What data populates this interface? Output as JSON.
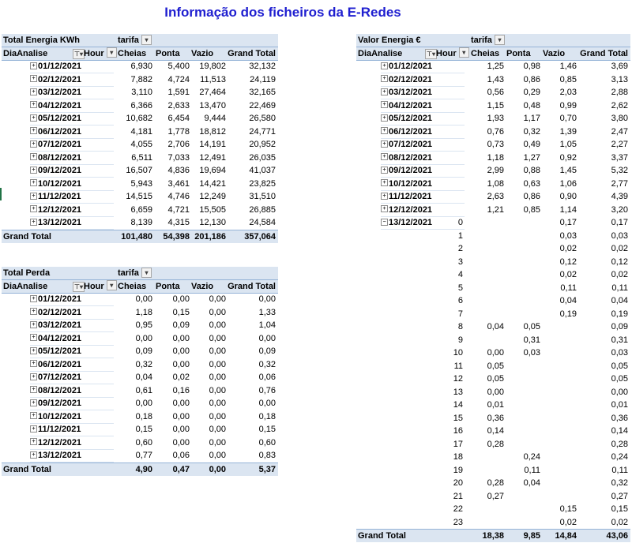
{
  "title": "Informação dos ficheiros da E-Redes",
  "icons": {
    "dropdown": "▾",
    "filter": "⊤▾",
    "expand": "+",
    "collapse": "−"
  },
  "energia": {
    "measure": "Total Energia KWh",
    "col_field": "tarifa",
    "row_field": "DiaAnalise",
    "hour_field": "Hour",
    "cols": [
      "Cheias",
      "Ponta",
      "Vazio",
      "Grand Total"
    ],
    "rows": [
      {
        "date": "01/12/2021",
        "v": [
          "6,930",
          "5,400",
          "19,802",
          "32,132"
        ]
      },
      {
        "date": "02/12/2021",
        "v": [
          "7,882",
          "4,724",
          "11,513",
          "24,119"
        ]
      },
      {
        "date": "03/12/2021",
        "v": [
          "3,110",
          "1,591",
          "27,464",
          "32,165"
        ]
      },
      {
        "date": "04/12/2021",
        "v": [
          "6,366",
          "2,633",
          "13,470",
          "22,469"
        ]
      },
      {
        "date": "05/12/2021",
        "v": [
          "10,682",
          "6,454",
          "9,444",
          "26,580"
        ]
      },
      {
        "date": "06/12/2021",
        "v": [
          "4,181",
          "1,778",
          "18,812",
          "24,771"
        ]
      },
      {
        "date": "07/12/2021",
        "v": [
          "4,055",
          "2,706",
          "14,191",
          "20,952"
        ]
      },
      {
        "date": "08/12/2021",
        "v": [
          "6,511",
          "7,033",
          "12,491",
          "26,035"
        ]
      },
      {
        "date": "09/12/2021",
        "v": [
          "16,507",
          "4,836",
          "19,694",
          "41,037"
        ]
      },
      {
        "date": "10/12/2021",
        "v": [
          "5,943",
          "3,461",
          "14,421",
          "23,825"
        ]
      },
      {
        "date": "11/12/2021",
        "v": [
          "14,515",
          "4,746",
          "12,249",
          "31,510"
        ]
      },
      {
        "date": "12/12/2021",
        "v": [
          "6,659",
          "4,721",
          "15,505",
          "26,885"
        ]
      },
      {
        "date": "13/12/2021",
        "v": [
          "8,139",
          "4,315",
          "12,130",
          "24,584"
        ]
      }
    ],
    "total_label": "Grand Total",
    "total": [
      "101,480",
      "54,398",
      "201,186",
      "357,064"
    ]
  },
  "perda": {
    "measure": "Total Perda",
    "col_field": "tarifa",
    "row_field": "DiaAnalise",
    "hour_field": "Hour",
    "cols": [
      "Cheias",
      "Ponta",
      "Vazio",
      "Grand Total"
    ],
    "rows": [
      {
        "date": "01/12/2021",
        "v": [
          "0,00",
          "0,00",
          "0,00",
          "0,00"
        ]
      },
      {
        "date": "02/12/2021",
        "v": [
          "1,18",
          "0,15",
          "0,00",
          "1,33"
        ]
      },
      {
        "date": "03/12/2021",
        "v": [
          "0,95",
          "0,09",
          "0,00",
          "1,04"
        ]
      },
      {
        "date": "04/12/2021",
        "v": [
          "0,00",
          "0,00",
          "0,00",
          "0,00"
        ]
      },
      {
        "date": "05/12/2021",
        "v": [
          "0,09",
          "0,00",
          "0,00",
          "0,09"
        ]
      },
      {
        "date": "06/12/2021",
        "v": [
          "0,32",
          "0,00",
          "0,00",
          "0,32"
        ]
      },
      {
        "date": "07/12/2021",
        "v": [
          "0,04",
          "0,02",
          "0,00",
          "0,06"
        ]
      },
      {
        "date": "08/12/2021",
        "v": [
          "0,61",
          "0,16",
          "0,00",
          "0,76"
        ]
      },
      {
        "date": "09/12/2021",
        "v": [
          "0,00",
          "0,00",
          "0,00",
          "0,00"
        ]
      },
      {
        "date": "10/12/2021",
        "v": [
          "0,18",
          "0,00",
          "0,00",
          "0,18"
        ]
      },
      {
        "date": "11/12/2021",
        "v": [
          "0,15",
          "0,00",
          "0,00",
          "0,15"
        ]
      },
      {
        "date": "12/12/2021",
        "v": [
          "0,60",
          "0,00",
          "0,00",
          "0,60"
        ]
      },
      {
        "date": "13/12/2021",
        "v": [
          "0,77",
          "0,06",
          "0,00",
          "0,83"
        ]
      }
    ],
    "total_label": "Grand Total",
    "total": [
      "4,90",
      "0,47",
      "0,00",
      "5,37"
    ]
  },
  "valor": {
    "measure": "Valor Energia €",
    "col_field": "tarifa",
    "row_field": "DiaAnalise",
    "hour_field": "Hour",
    "cols": [
      "Cheias",
      "Ponta",
      "Vazio",
      "Grand Total"
    ],
    "rows": [
      {
        "date": "01/12/2021",
        "v": [
          "1,25",
          "0,98",
          "1,46",
          "3,69"
        ]
      },
      {
        "date": "02/12/2021",
        "v": [
          "1,43",
          "0,86",
          "0,85",
          "3,13"
        ]
      },
      {
        "date": "03/12/2021",
        "v": [
          "0,56",
          "0,29",
          "2,03",
          "2,88"
        ]
      },
      {
        "date": "04/12/2021",
        "v": [
          "1,15",
          "0,48",
          "0,99",
          "2,62"
        ]
      },
      {
        "date": "05/12/2021",
        "v": [
          "1,93",
          "1,17",
          "0,70",
          "3,80"
        ]
      },
      {
        "date": "06/12/2021",
        "v": [
          "0,76",
          "0,32",
          "1,39",
          "2,47"
        ]
      },
      {
        "date": "07/12/2021",
        "v": [
          "0,73",
          "0,49",
          "1,05",
          "2,27"
        ]
      },
      {
        "date": "08/12/2021",
        "v": [
          "1,18",
          "1,27",
          "0,92",
          "3,37"
        ]
      },
      {
        "date": "09/12/2021",
        "v": [
          "2,99",
          "0,88",
          "1,45",
          "5,32"
        ]
      },
      {
        "date": "10/12/2021",
        "v": [
          "1,08",
          "0,63",
          "1,06",
          "2,77"
        ]
      },
      {
        "date": "11/12/2021",
        "v": [
          "2,63",
          "0,86",
          "0,90",
          "4,39"
        ]
      },
      {
        "date": "12/12/2021",
        "v": [
          "1,21",
          "0,85",
          "1,14",
          "3,20"
        ]
      }
    ],
    "expanded_date": "13/12/2021",
    "hours": [
      {
        "h": "0",
        "v": [
          "",
          "",
          "0,17",
          "0,17"
        ]
      },
      {
        "h": "1",
        "v": [
          "",
          "",
          "0,03",
          "0,03"
        ]
      },
      {
        "h": "2",
        "v": [
          "",
          "",
          "0,02",
          "0,02"
        ]
      },
      {
        "h": "3",
        "v": [
          "",
          "",
          "0,12",
          "0,12"
        ]
      },
      {
        "h": "4",
        "v": [
          "",
          "",
          "0,02",
          "0,02"
        ]
      },
      {
        "h": "5",
        "v": [
          "",
          "",
          "0,11",
          "0,11"
        ]
      },
      {
        "h": "6",
        "v": [
          "",
          "",
          "0,04",
          "0,04"
        ]
      },
      {
        "h": "7",
        "v": [
          "",
          "",
          "0,19",
          "0,19"
        ]
      },
      {
        "h": "8",
        "v": [
          "0,04",
          "0,05",
          "",
          "0,09"
        ]
      },
      {
        "h": "9",
        "v": [
          "",
          "0,31",
          "",
          "0,31"
        ]
      },
      {
        "h": "10",
        "v": [
          "0,00",
          "0,03",
          "",
          "0,03"
        ]
      },
      {
        "h": "11",
        "v": [
          "0,05",
          "",
          "",
          "0,05"
        ]
      },
      {
        "h": "12",
        "v": [
          "0,05",
          "",
          "",
          "0,05"
        ]
      },
      {
        "h": "13",
        "v": [
          "0,00",
          "",
          "",
          "0,00"
        ]
      },
      {
        "h": "14",
        "v": [
          "0,01",
          "",
          "",
          "0,01"
        ]
      },
      {
        "h": "15",
        "v": [
          "0,36",
          "",
          "",
          "0,36"
        ]
      },
      {
        "h": "16",
        "v": [
          "0,14",
          "",
          "",
          "0,14"
        ]
      },
      {
        "h": "17",
        "v": [
          "0,28",
          "",
          "",
          "0,28"
        ]
      },
      {
        "h": "18",
        "v": [
          "",
          "0,24",
          "",
          "0,24"
        ]
      },
      {
        "h": "19",
        "v": [
          "",
          "0,11",
          "",
          "0,11"
        ]
      },
      {
        "h": "20",
        "v": [
          "0,28",
          "0,04",
          "",
          "0,32"
        ]
      },
      {
        "h": "21",
        "v": [
          "0,27",
          "",
          "",
          "0,27"
        ]
      },
      {
        "h": "22",
        "v": [
          "",
          "",
          "0,15",
          "0,15"
        ]
      },
      {
        "h": "23",
        "v": [
          "",
          "",
          "0,02",
          "0,02"
        ]
      }
    ],
    "total_label": "Grand Total",
    "total": [
      "18,38",
      "9,85",
      "14,84",
      "43,06"
    ]
  }
}
